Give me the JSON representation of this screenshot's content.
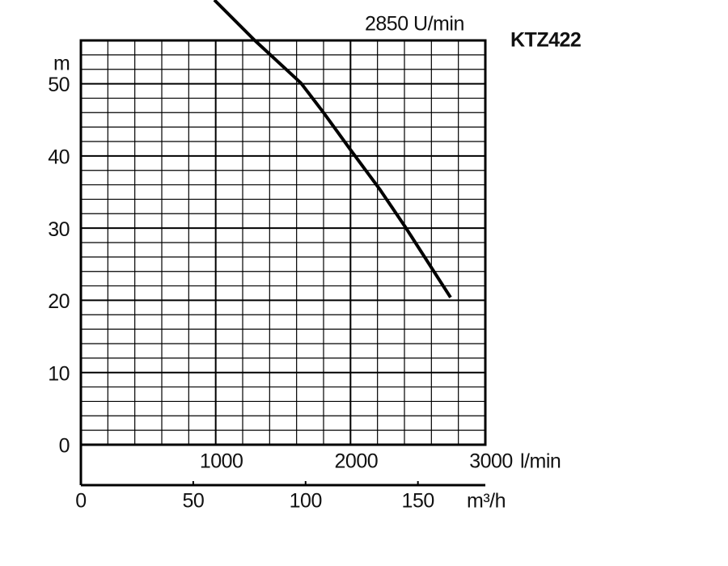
{
  "chart_data": {
    "type": "line",
    "title": "KTZ422",
    "subtitle": "2850 U/min",
    "y_label": "m",
    "x_label": "l/min",
    "x2_label": "m³/h",
    "x": [
      990,
      1290,
      1632,
      1800,
      1998,
      2220,
      2412,
      2742
    ],
    "series": [
      {
        "name": "KTZ422",
        "color": "#000000",
        "values": [
          61.6,
          56,
          50.1,
          46,
          40.9,
          35.3,
          30,
          20.4
        ]
      }
    ],
    "xlim": [
      0,
      3000
    ],
    "xticks": [
      1000,
      2000,
      3000
    ],
    "x2lim": [
      0,
      180
    ],
    "x2ticks": [
      0,
      50,
      100,
      150
    ],
    "ylim": [
      0,
      56
    ],
    "yticks": [
      0,
      10,
      20,
      30,
      40,
      50
    ],
    "grid": true
  }
}
